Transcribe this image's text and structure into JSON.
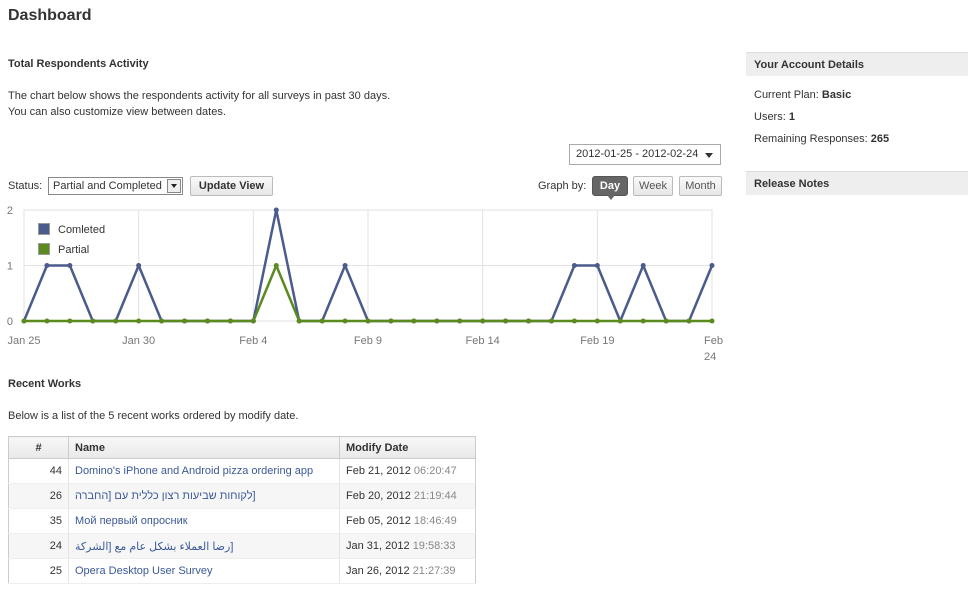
{
  "page": {
    "title": "Dashboard"
  },
  "activity": {
    "title": "Total Respondents Activity",
    "desc_line1": "The chart below shows the respondents activity for all surveys in past 30 days.",
    "desc_line2": "You can also customize view between dates.",
    "date_range": "2012-01-25 - 2012-02-24",
    "status_label": "Status:",
    "status_value": "Partial and Completed",
    "update_button": "Update View",
    "graph_by_label": "Graph by:",
    "graph_by_options": [
      "Day",
      "Week",
      "Month"
    ],
    "graph_by_selected": "Day"
  },
  "chart_data": {
    "type": "line",
    "x": [
      "Jan 25",
      "Jan 26",
      "Jan 27",
      "Jan 28",
      "Jan 29",
      "Jan 30",
      "Jan 31",
      "Feb 1",
      "Feb 2",
      "Feb 3",
      "Feb 4",
      "Feb 5",
      "Feb 6",
      "Feb 7",
      "Feb 8",
      "Feb 9",
      "Feb 10",
      "Feb 11",
      "Feb 12",
      "Feb 13",
      "Feb 14",
      "Feb 15",
      "Feb 16",
      "Feb 17",
      "Feb 18",
      "Feb 19",
      "Feb 20",
      "Feb 21",
      "Feb 22",
      "Feb 23",
      "Feb 24"
    ],
    "tick_labels": [
      "Jan 25",
      "Jan 30",
      "Feb 4",
      "Feb 9",
      "Feb 14",
      "Feb 19",
      "Feb 24"
    ],
    "tick_indices": [
      0,
      5,
      10,
      15,
      20,
      25,
      30
    ],
    "series": [
      {
        "name": "Comleted",
        "color": "#4a5b8c",
        "values": [
          0,
          1,
          1,
          0,
          0,
          1,
          0,
          0,
          0,
          0,
          0,
          2,
          0,
          0,
          1,
          0,
          0,
          0,
          0,
          0,
          0,
          0,
          0,
          0,
          1,
          1,
          0,
          1,
          0,
          0,
          1
        ]
      },
      {
        "name": "Partial",
        "color": "#5b8a1e",
        "values": [
          0,
          0,
          0,
          0,
          0,
          0,
          0,
          0,
          0,
          0,
          0,
          1,
          0,
          0,
          0,
          0,
          0,
          0,
          0,
          0,
          0,
          0,
          0,
          0,
          0,
          0,
          0,
          0,
          0,
          0,
          0
        ]
      }
    ],
    "ylim": [
      0,
      2
    ],
    "yticks": [
      "0",
      "1",
      "2"
    ],
    "grid": true,
    "legend": "top-left"
  },
  "recent": {
    "title": "Recent Works",
    "desc": "Below is a list of the 5 recent works ordered by modify date.",
    "columns": [
      "#",
      "Name",
      "Modify Date"
    ],
    "rows": [
      {
        "num": "44",
        "name": "Domino's iPhone and Android pizza ordering app",
        "date": "Feb 21, 2012",
        "time": "06:20:47"
      },
      {
        "num": "26",
        "name": "[לקוחות שביעות רצון כללית עם [החברה",
        "date": "Feb 20, 2012",
        "time": "21:19:44"
      },
      {
        "num": "35",
        "name": "Мой первый опросник",
        "date": "Feb 05, 2012",
        "time": "18:46:49"
      },
      {
        "num": "24",
        "name": "[رضا العملاء بشكل عام مع [الشركة",
        "date": "Jan 31, 2012",
        "time": "19:58:33"
      },
      {
        "num": "25",
        "name": "Opera Desktop User Survey",
        "date": "Jan 26, 2012",
        "time": "21:27:39"
      }
    ]
  },
  "account": {
    "title": "Your Account Details",
    "plan_label": "Current Plan:",
    "plan_value": "Basic",
    "users_label": "Users:",
    "users_value": "1",
    "responses_label": "Remaining Responses:",
    "responses_value": "265"
  },
  "release": {
    "title": "Release Notes"
  }
}
